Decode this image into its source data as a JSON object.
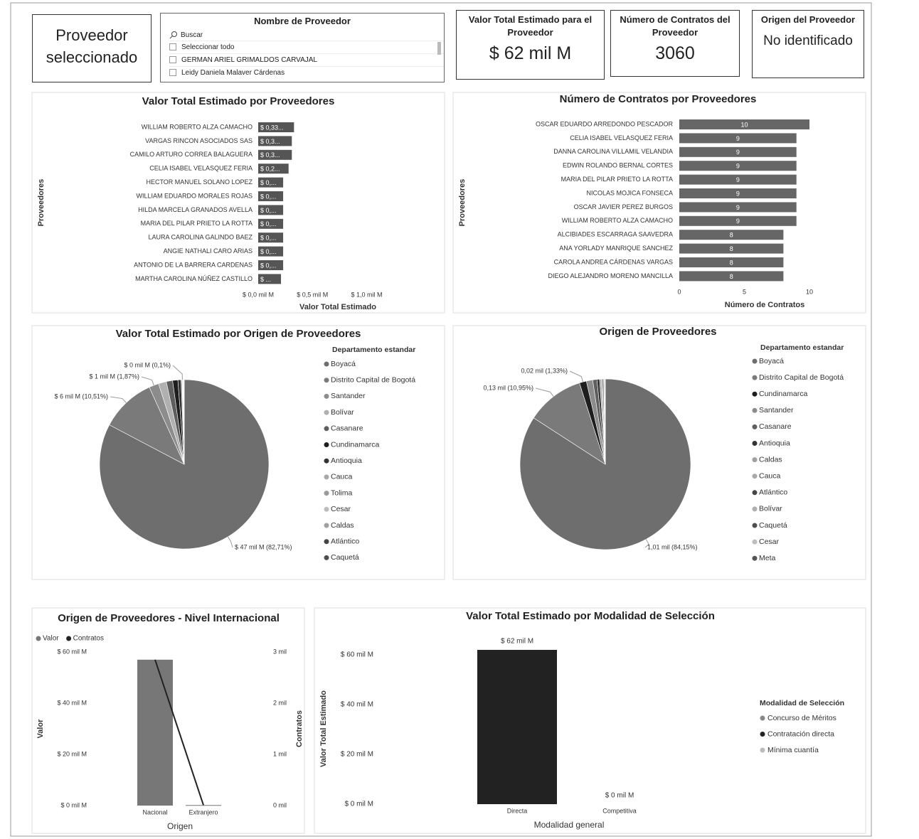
{
  "selected_label": "Proveedor seleccionado",
  "slicer": {
    "title": "Nombre de Proveedor",
    "search": "Buscar",
    "items": [
      "Seleccionar todo",
      "GERMAN ARIEL GRIMALDOS CARVAJAL",
      "Leidy Daniela Malaver Cárdenas"
    ]
  },
  "cards": [
    {
      "title": "Valor Total Estimado para el Proveedor",
      "value": "$ 62 mil M"
    },
    {
      "title": "Número de Contratos del Proveedor",
      "value": 3060
    },
    {
      "title": "Origen del Proveedor",
      "value": "No identificado"
    }
  ],
  "chart_data": [
    {
      "type": "hbar",
      "title": "Valor Total Estimado por Proveedores",
      "y_label": "Proveedores",
      "x_label": "Valor Total Estimado",
      "categories": [
        "WILLIAM ROBERTO ALZA CAMACHO",
        "VARGAS RINCON ASOCIADOS SAS",
        "CAMILO ARTURO CORREA BALAGUERA",
        "CELIA ISABEL VELASQUEZ FERIA",
        "HECTOR MANUEL SOLANO LOPEZ",
        "WILLIAM EDUARDO MORALES ROJAS",
        "HILDA MARCELA GRANADOS AVELLA",
        "MARIA DEL PILAR PRIETO LA ROTTA",
        "LAURA CAROLINA GALINDO BAEZ",
        "ANGIE NATHALI CARO ARIAS",
        "ANTONIO DE LA BARRERA CARDENAS",
        "MARTHA CAROLINA NÚÑEZ CASTILLO"
      ],
      "values": [
        0.33,
        0.31,
        0.31,
        0.28,
        0.23,
        0.23,
        0.23,
        0.23,
        0.23,
        0.23,
        0.23,
        0.21
      ],
      "value_labels": [
        "$ 0,33...",
        "$ 0,3...",
        "$ 0,3...",
        "$ 0,2...",
        "$ 0,...",
        "$ 0,...",
        "$ 0,...",
        "$ 0,...",
        "$ 0,...",
        "$ 0,...",
        "$ 0,...",
        "$ ..."
      ],
      "color": "#555555",
      "xlim": [
        0,
        1.2
      ],
      "xticks": [
        {
          "value": 0,
          "label": "$ 0,0 mil M"
        },
        {
          "value": 0.5,
          "label": "$ 0,5 mil M"
        },
        {
          "value": 1,
          "label": "$ 1,0 mil M"
        }
      ]
    },
    {
      "type": "hbar",
      "title": "Número de Contratos por Proveedores",
      "y_label": "Proveedores",
      "x_label": "Número de Contratos",
      "categories": [
        "OSCAR EDUARDO ARREDONDO PESCADOR",
        "CELIA ISABEL VELASQUEZ FERIA",
        "DANNA CAROLINA VILLAMIL VELANDIA",
        "EDWIN ROLANDO BERNAL CORTES",
        "MARIA DEL PILAR PRIETO LA ROTTA",
        "NICOLAS MOJICA FONSECA",
        "OSCAR JAVIER PEREZ BURGOS",
        "WILLIAM ROBERTO ALZA CAMACHO",
        "ALCIBIADES ESCARRAGA SAAVEDRA",
        "ANA YORLADY MANRIQUE SANCHEZ",
        "CAROLA ANDREA CÁRDENAS VARGAS",
        "DIEGO ALEJANDRO MORENO MANCILLA"
      ],
      "values": [
        10,
        9,
        9,
        9,
        9,
        9,
        9,
        9,
        8,
        8,
        8,
        8
      ],
      "color": "#666666",
      "xlim": [
        0,
        10
      ],
      "xticks": [
        0,
        5,
        10
      ]
    },
    {
      "type": "pie",
      "title": "Valor Total Estimado por Origen de Proveedores",
      "legend_title": "Departamento estandar",
      "categories": [
        "Boyacá",
        "Distrito Capital de Bogotá",
        "Santander",
        "Bolívar",
        "Casanare",
        "Cundinamarca",
        "Antioquia",
        "Cauca",
        "Tolima",
        "Cesar",
        "Caldas",
        "Atlántico",
        "Caquetá"
      ],
      "values": [
        82.71,
        10.51,
        1.87,
        1.5,
        1.2,
        1.0,
        0.6,
        0.2,
        0.1,
        0.1,
        0.1,
        0.05,
        0.05
      ],
      "value_labels": [
        "$ 47 mil M (82,71%)",
        "$ 6 mil M (10,51%)",
        "$ 1 mil M (1,87%)",
        null,
        null,
        null,
        null,
        null,
        "$ 0 mil M (0,1%)",
        null,
        null,
        null,
        null
      ],
      "colors": [
        "#6e6e6e",
        "#7a7a7a",
        "#8c8c8c",
        "#b0b0b0",
        "#5e5e5e",
        "#1e1e1e",
        "#333333",
        "#a8a8a8",
        "#9a9a9a",
        "#bdbdbd",
        "#a0a0a0",
        "#444444",
        "#4e4e4e"
      ]
    },
    {
      "type": "pie",
      "title": "Origen de Proveedores",
      "legend_title": "Departamento estandar",
      "categories": [
        "Boyacá",
        "Distrito Capital de Bogotá",
        "Cundinamarca",
        "Santander",
        "Casanare",
        "Antioquia",
        "Caldas",
        "Cauca",
        "Atlántico",
        "Bolívar",
        "Caquetá",
        "Cesar",
        "Meta"
      ],
      "values": [
        84.15,
        10.95,
        1.33,
        1.2,
        0.8,
        0.5,
        0.3,
        0.25,
        0.2,
        0.15,
        0.1,
        0.05,
        0.02
      ],
      "value_labels": [
        "1,01 mil (84,15%)",
        "0,13 mil (10,95%)",
        "0,02 mil (1,33%)",
        null,
        null,
        null,
        null,
        null,
        null,
        null,
        null,
        null,
        null
      ],
      "colors": [
        "#6e6e6e",
        "#7a7a7a",
        "#1e1e1e",
        "#8c8c8c",
        "#5e5e5e",
        "#333333",
        "#a0a0a0",
        "#a8a8a8",
        "#444444",
        "#b0b0b0",
        "#4e4e4e",
        "#bdbdbd",
        "#555555"
      ]
    },
    {
      "type": "combo",
      "title": "Origen de Proveedores - Nivel Internacional",
      "y_label": "Valor",
      "y2_label": "Contratos",
      "x_label": "Origen",
      "categories": [
        "Nacional",
        "Extranjero"
      ],
      "series": [
        {
          "name": "Valor",
          "color": "#777777",
          "kind": "bar",
          "values": [
            57,
            0.2
          ]
        },
        {
          "name": "Contratos",
          "color": "#222222",
          "kind": "line",
          "axis": "y2",
          "values": [
            2.85,
            0.01
          ]
        }
      ],
      "ylim": [
        0,
        60
      ],
      "yticks": [
        {
          "value": 0,
          "label": "$ 0 mil M"
        },
        {
          "value": 20,
          "label": "$ 20 mil M"
        },
        {
          "value": 40,
          "label": "$ 40 mil M"
        },
        {
          "value": 60,
          "label": "$ 60 mil M"
        }
      ],
      "y2lim": [
        0,
        3
      ],
      "y2ticks": [
        {
          "value": 0,
          "label": "0 mil"
        },
        {
          "value": 1,
          "label": "1 mil"
        },
        {
          "value": 2,
          "label": "2 mil"
        },
        {
          "value": 3,
          "label": "3 mil"
        }
      ]
    },
    {
      "type": "bar",
      "title": "Valor Total Estimado por Modalidad de Selección",
      "y_label": "Valor Total Estimado",
      "x_label": "Modalidad general",
      "categories": [
        "Directa",
        "Competitiva"
      ],
      "values": [
        62,
        0
      ],
      "value_labels": [
        "$ 62 mil M",
        "$ 0 mil M"
      ],
      "colors": [
        "#222222",
        "#888888"
      ],
      "ylim": [
        0,
        60
      ],
      "yticks": [
        {
          "value": 0,
          "label": "$ 0 mil M"
        },
        {
          "value": 20,
          "label": "$ 20 mil M"
        },
        {
          "value": 40,
          "label": "$ 40 mil M"
        },
        {
          "value": 60,
          "label": "$ 60 mil M"
        }
      ],
      "legend_title": "Modalidad de Selección",
      "legend": [
        {
          "name": "Concurso de Méritos",
          "color": "#888888"
        },
        {
          "name": "Contratación directa",
          "color": "#222222"
        },
        {
          "name": "Mínima cuantía",
          "color": "#bbbbbb"
        }
      ]
    }
  ]
}
